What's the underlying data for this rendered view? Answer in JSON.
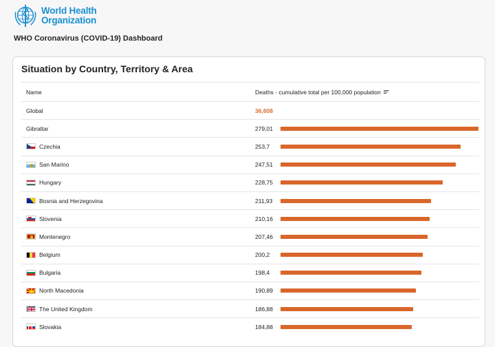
{
  "header": {
    "org_line1": "World Health",
    "org_line2": "Organization",
    "dashboard_title": "WHO Coronavirus (COVID-19) Dashboard"
  },
  "card": {
    "title": "Situation by Country, Territory & Area",
    "col_name": "Name",
    "col_metric": "Deaths - cumulative total per 100,000 population"
  },
  "colors": {
    "bar": "#d9672b",
    "global_value": "#d96b2a",
    "brand": "#1a8fd0"
  },
  "max_value": 279.01,
  "global": {
    "name": "Global",
    "value": "36,608"
  },
  "rows": [
    {
      "name": "Gibraltar",
      "value": "279,01",
      "num": 279.01,
      "flag": "none"
    },
    {
      "name": "Czechia",
      "value": "253,7",
      "num": 253.7,
      "flag": "czechia"
    },
    {
      "name": "San Marino",
      "value": "247,51",
      "num": 247.51,
      "flag": "san-marino"
    },
    {
      "name": "Hungary",
      "value": "228,75",
      "num": 228.75,
      "flag": "hungary"
    },
    {
      "name": "Bosnia and Herzegovina",
      "value": "211,93",
      "num": 211.93,
      "flag": "bosnia"
    },
    {
      "name": "Slovenia",
      "value": "210,16",
      "num": 210.16,
      "flag": "slovenia"
    },
    {
      "name": "Montenegro",
      "value": "207,46",
      "num": 207.46,
      "flag": "montenegro"
    },
    {
      "name": "Belgium",
      "value": "200,2",
      "num": 200.2,
      "flag": "belgium"
    },
    {
      "name": "Bulgaria",
      "value": "198,4",
      "num": 198.4,
      "flag": "bulgaria"
    },
    {
      "name": "North Macedonia",
      "value": "190,89",
      "num": 190.89,
      "flag": "north-macedonia"
    },
    {
      "name": "The United Kingdom",
      "value": "186,88",
      "num": 186.88,
      "flag": "uk"
    },
    {
      "name": "Slovakia",
      "value": "184,88",
      "num": 184.88,
      "flag": "slovakia"
    }
  ]
}
